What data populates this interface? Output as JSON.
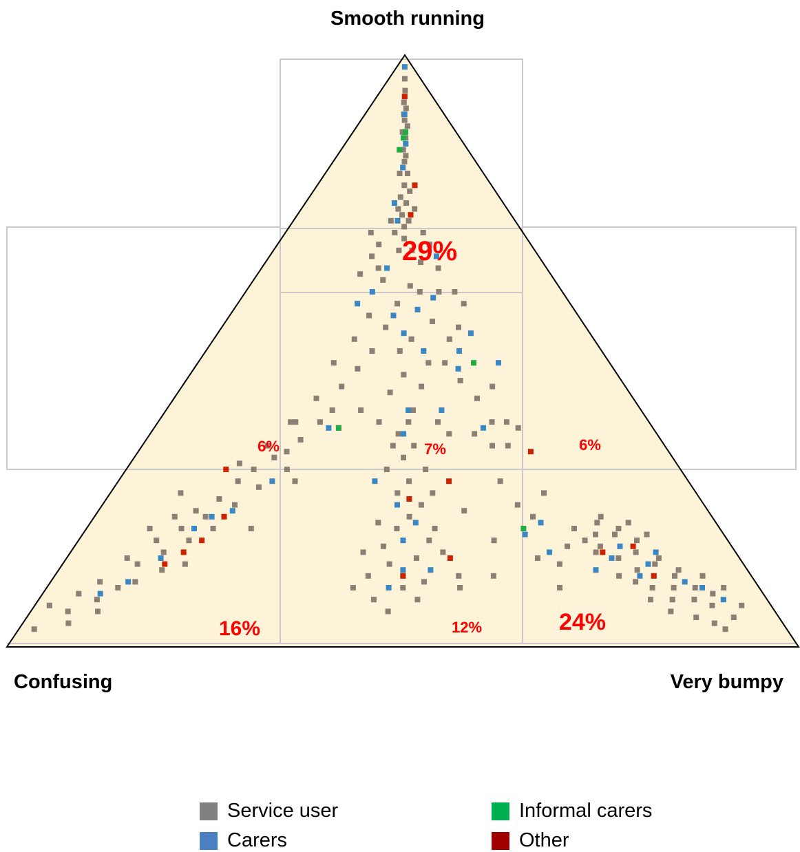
{
  "chart_data": {
    "type": "scatter",
    "subtype": "ternary triad",
    "vertices": {
      "top": "Smooth running",
      "left": "Confusing",
      "right": "Very bumpy"
    },
    "regions": [
      {
        "id": "top",
        "label": "29%",
        "value": 29
      },
      {
        "id": "mid-left",
        "label": "6%",
        "value": 6
      },
      {
        "id": "mid-center",
        "label": "7%",
        "value": 7
      },
      {
        "id": "mid-right",
        "label": "6%",
        "value": 6
      },
      {
        "id": "bottom-left",
        "label": "16%",
        "value": 16
      },
      {
        "id": "bottom-center",
        "label": "12%",
        "value": 12
      },
      {
        "id": "bottom-right",
        "label": "24%",
        "value": 24
      }
    ],
    "legend": [
      {
        "name": "Service user",
        "color": "#8b8073"
      },
      {
        "name": "Carers",
        "color": "#3a87c4"
      },
      {
        "name": "Informal carers",
        "color": "#22aa44"
      },
      {
        "name": "Other",
        "color": "#cc2200"
      }
    ],
    "fill_color": "#fdf3d8",
    "grid_color": "#c9c9c9",
    "series": [
      {
        "name": "Service user",
        "points": [
          [
            0.02,
            0.97
          ],
          [
            0.02,
            0.93
          ],
          [
            0.05,
            0.94
          ],
          [
            0.08,
            0.92
          ],
          [
            0.1,
            0.9
          ],
          [
            0.12,
            0.89
          ],
          [
            0.15,
            0.87
          ],
          [
            0.05,
            0.91
          ],
          [
            0.07,
            0.89
          ],
          [
            0.11,
            0.86
          ],
          [
            0.14,
            0.84
          ],
          [
            0.17,
            0.82
          ],
          [
            0.2,
            0.8
          ],
          [
            0.18,
            0.78
          ],
          [
            0.22,
            0.76
          ],
          [
            0.25,
            0.73
          ],
          [
            0.12,
            0.82
          ],
          [
            0.15,
            0.8
          ],
          [
            0.09,
            0.85
          ],
          [
            0.19,
            0.75
          ],
          [
            0.23,
            0.7
          ],
          [
            0.26,
            0.68
          ],
          [
            0.3,
            0.65
          ],
          [
            0.28,
            0.67
          ],
          [
            0.21,
            0.72
          ],
          [
            0.16,
            0.77
          ],
          [
            0.1,
            0.8
          ],
          [
            0.13,
            0.78
          ],
          [
            0.24,
            0.66
          ],
          [
            0.33,
            0.62
          ],
          [
            0.29,
            0.7
          ],
          [
            0.06,
            0.96
          ],
          [
            0.09,
            0.94
          ],
          [
            0.18,
            0.86
          ],
          [
            0.26,
            0.8
          ],
          [
            0.31,
            0.72
          ],
          [
            0.35,
            0.6
          ],
          [
            0.12,
            0.74
          ],
          [
            0.2,
            0.69
          ],
          [
            0.27,
            0.62
          ],
          [
            0.47,
            0.83
          ],
          [
            0.49,
            0.8
          ],
          [
            0.51,
            0.78
          ],
          [
            0.48,
            0.86
          ],
          [
            0.5,
            0.88
          ],
          [
            0.52,
            0.85
          ],
          [
            0.54,
            0.82
          ],
          [
            0.46,
            0.79
          ],
          [
            0.53,
            0.76
          ],
          [
            0.49,
            0.74
          ],
          [
            0.51,
            0.72
          ],
          [
            0.47,
            0.7
          ],
          [
            0.55,
            0.8
          ],
          [
            0.5,
            0.9
          ],
          [
            0.52,
            0.92
          ],
          [
            0.45,
            0.88
          ],
          [
            0.48,
            0.94
          ],
          [
            0.53,
            0.89
          ],
          [
            0.56,
            0.84
          ],
          [
            0.44,
            0.84
          ],
          [
            0.5,
            0.68
          ],
          [
            0.52,
            0.66
          ],
          [
            0.49,
            0.64
          ],
          [
            0.51,
            0.62
          ],
          [
            0.54,
            0.7
          ],
          [
            0.46,
            0.92
          ],
          [
            0.43,
            0.9
          ],
          [
            0.58,
            0.88
          ],
          [
            0.48,
            0.66
          ],
          [
            0.55,
            0.74
          ],
          [
            0.8,
            0.83
          ],
          [
            0.82,
            0.85
          ],
          [
            0.84,
            0.87
          ],
          [
            0.86,
            0.88
          ],
          [
            0.88,
            0.9
          ],
          [
            0.9,
            0.92
          ],
          [
            0.92,
            0.93
          ],
          [
            0.85,
            0.84
          ],
          [
            0.87,
            0.86
          ],
          [
            0.89,
            0.88
          ],
          [
            0.91,
            0.9
          ],
          [
            0.93,
            0.91
          ],
          [
            0.83,
            0.81
          ],
          [
            0.81,
            0.79
          ],
          [
            0.86,
            0.82
          ],
          [
            0.88,
            0.85
          ],
          [
            0.9,
            0.87
          ],
          [
            0.94,
            0.95
          ],
          [
            0.92,
            0.97
          ],
          [
            0.87,
            0.92
          ],
          [
            0.85,
            0.9
          ],
          [
            0.83,
            0.89
          ],
          [
            0.95,
            0.9
          ],
          [
            0.84,
            0.8
          ],
          [
            0.8,
            0.81
          ],
          [
            0.82,
            0.78
          ],
          [
            0.89,
            0.95
          ],
          [
            0.91,
            0.96
          ],
          [
            0.86,
            0.94
          ],
          [
            0.93,
            0.88
          ],
          [
            0.79,
            0.84
          ],
          [
            0.81,
            0.88
          ],
          [
            0.84,
            0.92
          ],
          [
            0.78,
            0.82
          ],
          [
            0.77,
            0.8
          ],
          [
            0.96,
            0.93
          ],
          [
            0.88,
            0.81
          ],
          [
            0.86,
            0.79
          ],
          [
            0.75,
            0.83
          ],
          [
            0.73,
            0.86
          ],
          [
            0.71,
            0.78
          ],
          [
            0.69,
            0.76
          ],
          [
            0.67,
            0.72
          ],
          [
            0.74,
            0.74
          ],
          [
            0.63,
            0.88
          ],
          [
            0.6,
            0.77
          ],
          [
            0.58,
            0.9
          ],
          [
            0.72,
            0.9
          ],
          [
            0.64,
            0.82
          ],
          [
            0.7,
            0.85
          ],
          [
            0.5,
            0.04
          ],
          [
            0.51,
            0.06
          ],
          [
            0.49,
            0.08
          ],
          [
            0.52,
            0.09
          ],
          [
            0.5,
            0.11
          ],
          [
            0.48,
            0.13
          ],
          [
            0.51,
            0.14
          ],
          [
            0.53,
            0.12
          ],
          [
            0.49,
            0.16
          ],
          [
            0.5,
            0.18
          ],
          [
            0.52,
            0.2
          ],
          [
            0.47,
            0.2
          ],
          [
            0.5,
            0.22
          ],
          [
            0.48,
            0.24
          ],
          [
            0.51,
            0.25
          ],
          [
            0.49,
            0.27
          ],
          [
            0.53,
            0.23
          ],
          [
            0.5,
            0.29
          ],
          [
            0.47,
            0.26
          ],
          [
            0.52,
            0.28
          ],
          [
            0.5,
            0.13
          ],
          [
            0.5,
            0.07
          ],
          [
            0.49,
            0.1
          ],
          [
            0.51,
            0.17
          ],
          [
            0.5,
            0.31
          ],
          [
            0.48,
            0.33
          ],
          [
            0.53,
            0.33
          ],
          [
            0.46,
            0.3
          ],
          [
            0.55,
            0.26
          ],
          [
            0.44,
            0.28
          ],
          [
            0.4,
            0.32
          ],
          [
            0.38,
            0.34
          ],
          [
            0.41,
            0.36
          ],
          [
            0.36,
            0.3
          ],
          [
            0.58,
            0.3
          ],
          [
            0.6,
            0.32
          ],
          [
            0.56,
            0.35
          ],
          [
            0.43,
            0.38
          ],
          [
            0.35,
            0.37
          ],
          [
            0.62,
            0.36
          ],
          [
            0.4,
            0.44
          ],
          [
            0.37,
            0.48
          ],
          [
            0.42,
            0.5
          ],
          [
            0.39,
            0.53
          ],
          [
            0.36,
            0.56
          ],
          [
            0.33,
            0.52
          ],
          [
            0.31,
            0.58
          ],
          [
            0.28,
            0.62
          ],
          [
            0.45,
            0.46
          ],
          [
            0.48,
            0.42
          ],
          [
            0.58,
            0.45
          ],
          [
            0.62,
            0.48
          ],
          [
            0.65,
            0.46
          ],
          [
            0.6,
            0.52
          ],
          [
            0.63,
            0.55
          ],
          [
            0.66,
            0.58
          ],
          [
            0.68,
            0.62
          ],
          [
            0.7,
            0.56
          ],
          [
            0.56,
            0.52
          ],
          [
            0.54,
            0.56
          ],
          [
            0.49,
            0.5
          ],
          [
            0.5,
            0.54
          ],
          [
            0.52,
            0.48
          ],
          [
            0.47,
            0.57
          ],
          [
            0.52,
            0.6
          ],
          [
            0.45,
            0.62
          ],
          [
            0.41,
            0.6
          ],
          [
            0.57,
            0.62
          ],
          [
            0.59,
            0.64
          ],
          [
            0.37,
            0.63
          ],
          [
            0.67,
            0.66
          ],
          [
            0.7,
            0.66
          ],
          [
            0.71,
            0.62
          ],
          [
            0.73,
            0.63
          ],
          [
            0.64,
            0.64
          ],
          [
            0.55,
            0.4
          ],
          [
            0.61,
            0.4
          ],
          [
            0.68,
            0.42
          ],
          [
            0.66,
            0.4
          ],
          [
            0.52,
            0.39
          ]
        ]
      },
      {
        "name": "Carers",
        "points": [
          [
            0.08,
            0.91
          ],
          [
            0.11,
            0.89
          ],
          [
            0.14,
            0.85
          ],
          [
            0.17,
            0.8
          ],
          [
            0.19,
            0.78
          ],
          [
            0.22,
            0.77
          ],
          [
            0.27,
            0.72
          ],
          [
            0.35,
            0.63
          ],
          [
            0.5,
            0.82
          ],
          [
            0.49,
            0.76
          ],
          [
            0.52,
            0.79
          ],
          [
            0.5,
            0.87
          ],
          [
            0.48,
            0.9
          ],
          [
            0.54,
            0.87
          ],
          [
            0.86,
            0.86
          ],
          [
            0.88,
            0.84
          ],
          [
            0.9,
            0.89
          ],
          [
            0.84,
            0.88
          ],
          [
            0.92,
            0.9
          ],
          [
            0.94,
            0.92
          ],
          [
            0.81,
            0.85
          ],
          [
            0.83,
            0.83
          ],
          [
            0.78,
            0.87
          ],
          [
            0.72,
            0.79
          ],
          [
            0.69,
            0.81
          ],
          [
            0.5,
            0.02
          ],
          [
            0.5,
            0.1
          ],
          [
            0.51,
            0.15
          ],
          [
            0.49,
            0.19
          ],
          [
            0.45,
            0.25
          ],
          [
            0.47,
            0.28
          ],
          [
            0.44,
            0.36
          ],
          [
            0.4,
            0.4
          ],
          [
            0.47,
            0.44
          ],
          [
            0.5,
            0.47
          ],
          [
            0.54,
            0.43
          ],
          [
            0.55,
            0.5
          ],
          [
            0.59,
            0.41
          ],
          [
            0.63,
            0.53
          ],
          [
            0.64,
            0.5
          ],
          [
            0.68,
            0.47
          ],
          [
            0.73,
            0.52
          ],
          [
            0.58,
            0.6
          ],
          [
            0.5,
            0.64
          ],
          [
            0.45,
            0.72
          ],
          [
            0.51,
            0.6
          ],
          [
            0.36,
            0.42
          ],
          [
            0.62,
            0.34
          ],
          [
            0.66,
            0.63
          ],
          [
            0.72,
            0.84
          ]
        ]
      },
      {
        "name": "Informal carers",
        "points": [
          [
            0.49,
            0.14
          ],
          [
            0.46,
            0.16
          ],
          [
            0.51,
            0.13
          ],
          [
            0.37,
            0.63
          ],
          [
            0.67,
            0.52
          ],
          [
            0.69,
            0.8
          ]
        ]
      },
      {
        "name": "Other",
        "points": [
          [
            0.15,
            0.86
          ],
          [
            0.17,
            0.84
          ],
          [
            0.19,
            0.82
          ],
          [
            0.21,
            0.78
          ],
          [
            0.18,
            0.7
          ],
          [
            0.5,
            0.88
          ],
          [
            0.51,
            0.75
          ],
          [
            0.58,
            0.72
          ],
          [
            0.5,
            0.07
          ],
          [
            0.53,
            0.27
          ],
          [
            0.56,
            0.22
          ],
          [
            0.8,
            0.84
          ],
          [
            0.85,
            0.83
          ],
          [
            0.86,
            0.88
          ],
          [
            0.74,
            0.67
          ],
          [
            0.57,
            0.85
          ]
        ]
      }
    ]
  }
}
